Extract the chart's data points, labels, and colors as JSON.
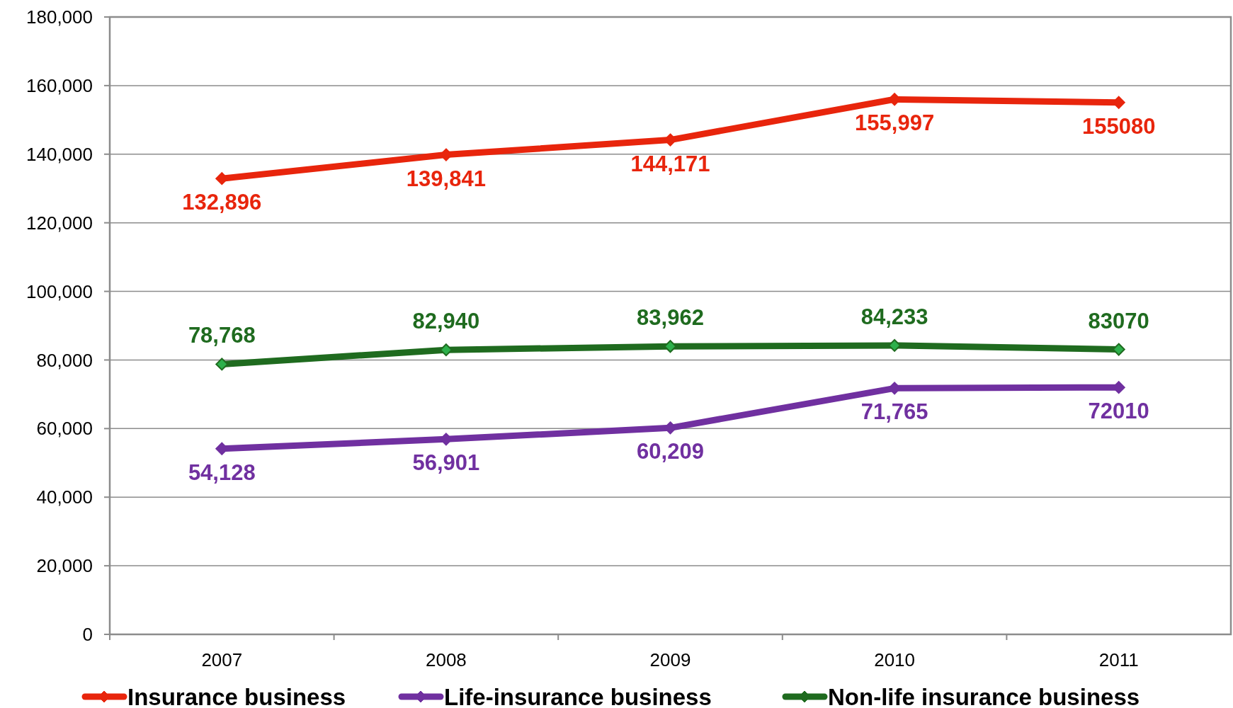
{
  "chart_data": {
    "type": "line",
    "categories": [
      "2007",
      "2008",
      "2009",
      "2010",
      "2011"
    ],
    "series": [
      {
        "name": "Insurance business",
        "color": "#e8250c",
        "values": [
          132896,
          139841,
          144171,
          155997,
          155080
        ],
        "value_labels": [
          "132,896",
          "139,841",
          "144,171",
          "155,997",
          "155080"
        ]
      },
      {
        "name": "Life-insurance business",
        "color": "#7030a0",
        "values": [
          54128,
          56901,
          60209,
          71765,
          72010
        ],
        "value_labels": [
          "54,128",
          "56,901",
          "60,209",
          "71,765",
          "72010"
        ]
      },
      {
        "name": "Non-life insurance business",
        "color": "#1f6b1f",
        "values": [
          78768,
          82940,
          83962,
          84233,
          83070
        ],
        "value_labels": [
          "78,768",
          "82,940",
          "83,962",
          "84,233",
          "83070"
        ]
      }
    ],
    "ylim": [
      0,
      180000
    ],
    "yticks": [
      {
        "value": 0,
        "label": "0"
      },
      {
        "value": 20000,
        "label": "20,000"
      },
      {
        "value": 40000,
        "label": "40,000"
      },
      {
        "value": 60000,
        "label": "60,000"
      },
      {
        "value": 80000,
        "label": "80,000"
      },
      {
        "value": 100000,
        "label": "100,000"
      },
      {
        "value": 120000,
        "label": "120,000"
      },
      {
        "value": 140000,
        "label": "140,000"
      },
      {
        "value": 160000,
        "label": "160,000"
      },
      {
        "value": 180000,
        "label": "180,000"
      }
    ],
    "grid": "y",
    "legend": "bottom",
    "marker": "diamond",
    "line_style": "solid"
  }
}
